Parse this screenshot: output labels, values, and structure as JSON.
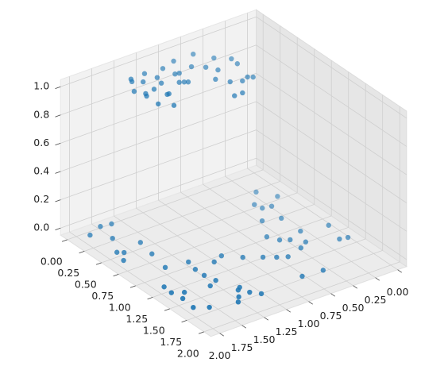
{
  "chart_data": {
    "type": "scatter3d",
    "xlim": [
      -0.1,
      2.1
    ],
    "ylim": [
      -0.1,
      2.1
    ],
    "zlim": [
      -0.05,
      1.05
    ],
    "xticks": [
      {
        "value": 0,
        "label": "0.00"
      },
      {
        "value": 0.25,
        "label": "0.25"
      },
      {
        "value": 0.5,
        "label": "0.50"
      },
      {
        "value": 0.75,
        "label": "0.75"
      },
      {
        "value": 1,
        "label": "1.00"
      },
      {
        "value": 1.25,
        "label": "1.25"
      },
      {
        "value": 1.5,
        "label": "1.50"
      },
      {
        "value": 1.75,
        "label": "1.75"
      },
      {
        "value": 2,
        "label": "2.00"
      }
    ],
    "yticks": [
      {
        "value": 0,
        "label": "0.00"
      },
      {
        "value": 0.25,
        "label": "0.25"
      },
      {
        "value": 0.5,
        "label": "0.50"
      },
      {
        "value": 0.75,
        "label": "0.75"
      },
      {
        "value": 1,
        "label": "1.00"
      },
      {
        "value": 1.25,
        "label": "1.25"
      },
      {
        "value": 1.5,
        "label": "1.50"
      },
      {
        "value": 1.75,
        "label": "1.75"
      },
      {
        "value": 2,
        "label": "2.00"
      }
    ],
    "zticks": [
      {
        "value": 0,
        "label": "0.0"
      },
      0.2,
      0.4,
      0.6,
      0.8,
      {
        "value": 1,
        "label": "1.0"
      }
    ],
    "grid": true,
    "series": [
      {
        "color": "#1f77b4",
        "x": [
          0.38,
          0.55,
          0.55,
          0.66,
          0.64,
          0.88,
          0.82,
          1.16,
          1.22,
          1.49,
          1.47,
          1.34,
          1.23,
          1.18,
          1.07,
          1.4,
          1.46,
          1.41,
          1.34,
          1.24,
          1.11,
          1.16,
          1.03,
          1.17,
          1.3,
          0.99,
          0.73,
          0.51,
          0.57,
          0.31,
          0.08,
          0.1,
          0.15,
          0.53,
          1.26,
          1.38,
          1.44,
          1.52,
          1.7,
          1.48,
          1.43,
          1.65,
          1.78,
          1.77,
          1.85,
          1.85,
          1.78,
          1.81,
          1.83,
          1.68,
          0.68,
          0.15,
          0.19,
          0.14,
          0.16,
          0.11,
          0.11,
          0.27,
          0.37,
          0.47,
          0.74,
          0.71,
          0.74,
          0.91,
          0.91,
          0.69,
          0.58,
          0.46,
          0.36,
          0.28,
          0.31,
          0.46,
          0.44,
          0.48,
          0.26,
          0.25,
          0.41,
          0.55,
          0.64,
          0.74,
          0.55,
          0.47,
          0.34,
          0.43,
          0.36,
          0.3
        ],
        "y": [
          0.27,
          0.42,
          0.16,
          0.31,
          0.4,
          0.37,
          0.54,
          0.37,
          0.1,
          0.09,
          0.17,
          0.45,
          0.54,
          0.62,
          0.68,
          0.55,
          0.74,
          0.83,
          0.93,
          1.08,
          1.22,
          1.34,
          1.53,
          1.56,
          1.56,
          1.76,
          1.71,
          1.67,
          1.9,
          1.83,
          1.79,
          1.68,
          1.96,
          1.95,
          1.98,
          1.99,
          1.89,
          1.97,
          1.99,
          1.63,
          1.53,
          1.43,
          1.54,
          1.41,
          1.34,
          1.6,
          1.87,
          0.85,
          0.63,
          1.47,
          1.99,
          1.5,
          1.52,
          1.34,
          1.15,
          0.99,
          0.77,
          0.66,
          0.54,
          0.55,
          0.58,
          0.62,
          0.7,
          0.92,
          0.83,
          0.8,
          0.88,
          0.76,
          0.82,
          0.92,
          1.08,
          1.14,
          1.18,
          1.11,
          1.29,
          1.44,
          1.44,
          1.38,
          1.57,
          1.47,
          1.4,
          1.57,
          1.61,
          1.55,
          1.32,
          1.12
        ],
        "z": [
          0,
          0,
          0,
          0,
          0,
          0,
          0,
          0,
          0,
          0,
          0,
          0,
          0,
          0,
          0,
          0,
          0,
          0,
          0,
          0,
          0,
          0,
          0,
          0,
          0,
          0,
          0,
          0,
          0,
          0,
          0,
          0,
          0,
          0,
          0,
          0,
          0,
          0,
          0,
          0,
          0,
          0,
          0,
          0,
          0,
          0,
          0,
          0,
          0,
          0,
          0,
          1,
          1,
          1,
          1,
          1,
          1,
          1,
          1,
          1,
          1,
          1,
          1,
          1,
          1,
          1,
          1,
          1,
          1,
          1,
          1,
          1,
          1,
          1,
          1,
          1,
          1,
          1,
          1,
          1,
          1,
          1,
          1,
          1,
          1,
          1
        ]
      }
    ]
  }
}
